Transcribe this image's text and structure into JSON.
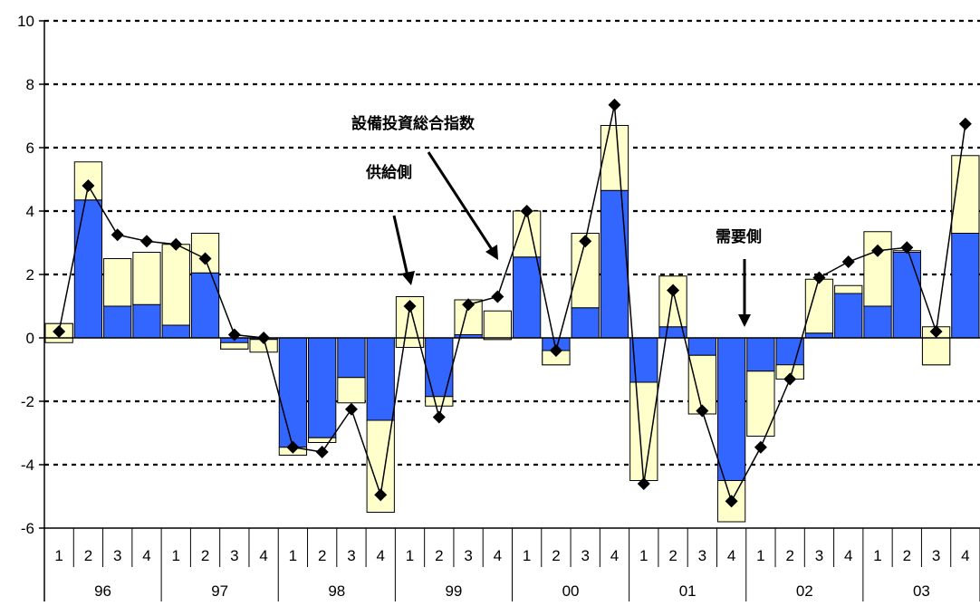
{
  "chart_data": {
    "type": "bar",
    "ylim": [
      -6,
      10
    ],
    "yticks": [
      -6,
      -4,
      -2,
      0,
      2,
      4,
      6,
      8,
      10
    ],
    "grid": true,
    "quarters": [
      "1",
      "2",
      "3",
      "4",
      "1",
      "2",
      "3",
      "4",
      "1",
      "2",
      "3",
      "4",
      "1",
      "2",
      "3",
      "4",
      "1",
      "2",
      "3",
      "4",
      "1",
      "2",
      "3",
      "4",
      "1",
      "2",
      "3",
      "4",
      "1",
      "2",
      "3",
      "4"
    ],
    "years": [
      "96",
      "97",
      "98",
      "99",
      "00",
      "01",
      "02",
      "03"
    ],
    "series": [
      {
        "kind": "bar",
        "color": "#3366ff",
        "values": [
          0.45,
          4.35,
          1.0,
          1.05,
          0.4,
          2.05,
          -0.35,
          -0.05,
          -3.45,
          -3.15,
          -1.25,
          -2.6,
          -0.3,
          -1.85,
          0.1,
          -0.05,
          2.55,
          -0.85,
          0.95,
          4.65,
          -1.4,
          0.35,
          -0.55,
          -4.5,
          -1.05,
          -1.3,
          0.15,
          1.4,
          1.0,
          2.7,
          -0.85,
          3.3
        ]
      },
      {
        "kind": "bar",
        "color": "#ffffcc",
        "values": [
          -0.6,
          1.2,
          1.5,
          1.65,
          2.55,
          1.25,
          0.2,
          -0.4,
          -0.25,
          -0.15,
          -0.8,
          -2.9,
          1.6,
          -0.3,
          1.1,
          0.9,
          1.45,
          0.45,
          2.35,
          2.05,
          -3.1,
          1.6,
          -1.85,
          -1.3,
          -2.05,
          0.45,
          1.7,
          0.25,
          2.35,
          0.05,
          1.2,
          2.45
        ]
      },
      {
        "kind": "line",
        "marker": "diamond",
        "color": "#000000",
        "values": [
          0.2,
          4.8,
          3.25,
          3.05,
          2.95,
          2.5,
          0.1,
          0.0,
          -3.45,
          -3.6,
          -2.25,
          -4.95,
          1.0,
          -2.5,
          1.05,
          1.3,
          4.0,
          -0.4,
          3.05,
          7.35,
          -4.6,
          1.5,
          -2.3,
          -5.15,
          -3.45,
          -1.3,
          1.9,
          2.4,
          2.75,
          2.85,
          0.2,
          6.75
        ]
      }
    ],
    "annotations": [
      {
        "text": "設備投資総合指数"
      },
      {
        "text": "供給側"
      },
      {
        "text": "需要側"
      }
    ]
  }
}
